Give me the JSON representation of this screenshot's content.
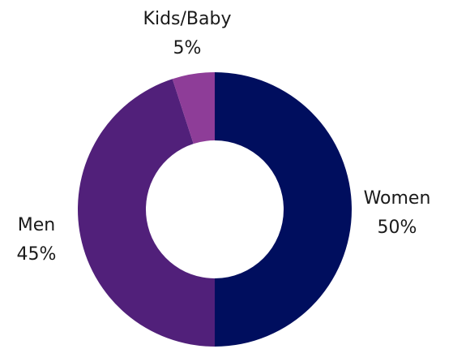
{
  "chart_data": {
    "type": "pie",
    "variant": "donut",
    "title": "",
    "legend": "none",
    "slices": [
      {
        "label": "Women",
        "value": 50,
        "value_label": "50%",
        "color": "#000e5e"
      },
      {
        "label": "Men",
        "value": 45,
        "value_label": "45%",
        "color": "#51207a"
      },
      {
        "label": "Kids/Baby",
        "value": 5,
        "value_label": "5%",
        "color": "#8e3d98"
      }
    ],
    "background_color": "#ffffff",
    "label_color": "#1a1a1a"
  }
}
